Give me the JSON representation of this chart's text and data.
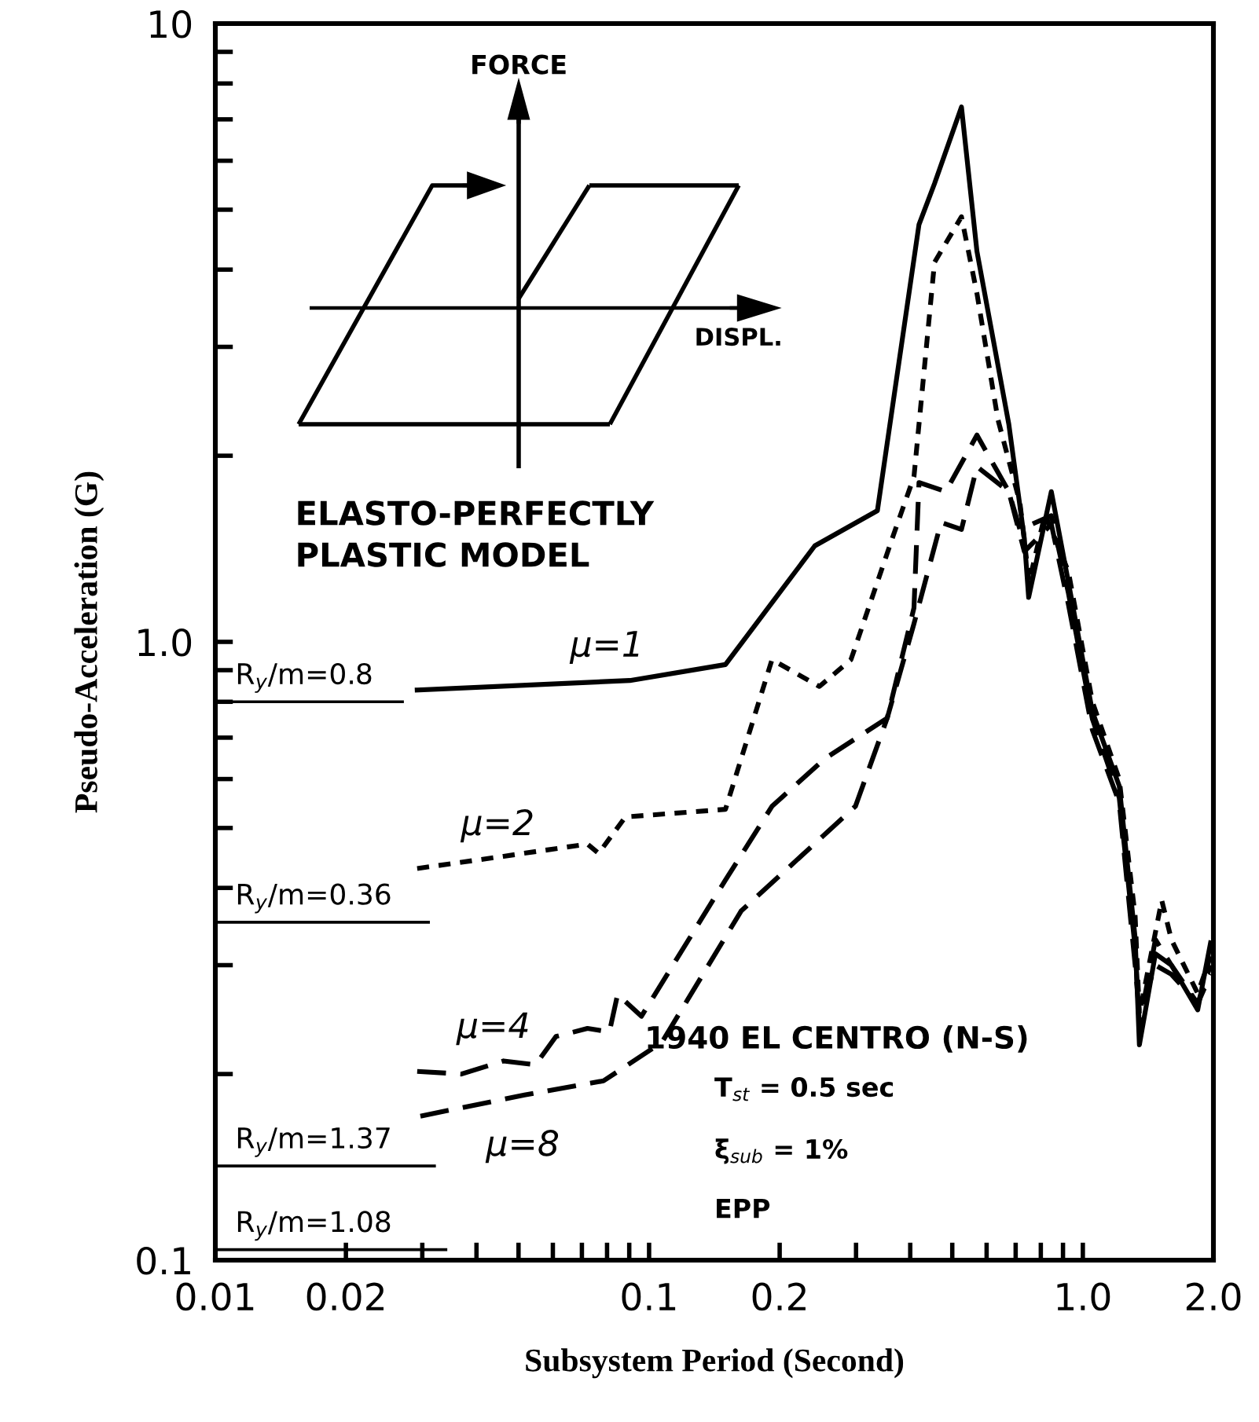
{
  "chart_data": {
    "type": "line",
    "xlabel": "Subsystem Period (Second)",
    "ylabel": "Pseudo-Acceleration (G)",
    "log": "xy",
    "xlim": [
      0.01,
      2.0
    ],
    "ylim": [
      0.1,
      10
    ],
    "xticks": [
      0.01,
      0.02,
      {
        "value": 0.03,
        "label": null
      },
      {
        "value": 0.04,
        "label": null
      },
      {
        "value": 0.05,
        "label": null
      },
      {
        "value": 0.06,
        "label": null
      },
      {
        "value": 0.07,
        "label": null
      },
      {
        "value": 0.08,
        "label": null
      },
      {
        "value": 0.09,
        "label": null
      },
      0.1,
      0.2,
      {
        "value": 0.3,
        "label": null
      },
      {
        "value": 0.4,
        "label": null
      },
      {
        "value": 0.5,
        "label": null
      },
      {
        "value": 0.6,
        "label": null
      },
      {
        "value": 0.7,
        "label": null
      },
      {
        "value": 0.8,
        "label": null
      },
      {
        "value": 0.9,
        "label": null
      },
      {
        "value": 1,
        "label": "1.0"
      },
      {
        "value": 2,
        "label": "2.0"
      }
    ],
    "yticks": [
      0.1,
      {
        "value": 0.2,
        "label": null
      },
      {
        "value": 0.3,
        "label": null
      },
      {
        "value": 0.4,
        "label": null
      },
      {
        "value": 0.5,
        "label": null
      },
      {
        "value": 0.6,
        "label": null
      },
      {
        "value": 0.7,
        "label": null
      },
      {
        "value": 0.8,
        "label": null
      },
      {
        "value": 0.9,
        "label": null
      },
      {
        "value": 1,
        "label": "1.0"
      },
      {
        "value": 2,
        "label": null
      },
      {
        "value": 3,
        "label": null
      },
      {
        "value": 4,
        "label": null
      },
      {
        "value": 5,
        "label": null
      },
      {
        "value": 6,
        "label": null
      },
      {
        "value": 7,
        "label": null
      },
      {
        "value": 8,
        "label": null
      },
      {
        "value": 9,
        "label": null
      },
      10
    ],
    "grid": false,
    "legend": false,
    "marker": "none",
    "series": [
      {
        "name": "μ=1",
        "color": "#000000",
        "line_style": "solid",
        "x": [
          0.0292,
          0.0903,
          0.15,
          0.241,
          0.336,
          0.419,
          0.455,
          0.525,
          0.57,
          0.675,
          0.733,
          0.75,
          0.846,
          0.926,
          1.052,
          1.213,
          1.32,
          1.35,
          1.47,
          1.6,
          1.84,
          1.97
        ],
        "values": [
          0.836,
          0.866,
          0.919,
          1.43,
          1.63,
          4.73,
          5.51,
          7.33,
          4.28,
          2.25,
          1.47,
          1.18,
          1.75,
          1.25,
          0.771,
          0.585,
          0.332,
          0.223,
          0.313,
          0.3,
          0.254,
          0.326
        ]
      },
      {
        "name": "μ=2",
        "color": "#000000",
        "line_style": "dotted",
        "x": [
          0.0292,
          0.0462,
          0.061,
          0.0721,
          0.0765,
          0.0882,
          0.15,
          0.192,
          0.247,
          0.292,
          0.366,
          0.408,
          0.455,
          0.525,
          0.57,
          0.637,
          0.716,
          0.752,
          0.818,
          0.926,
          1.052,
          1.213,
          1.32,
          1.35,
          1.52,
          1.6,
          1.84,
          1.97
        ],
        "values": [
          0.43,
          0.45,
          0.463,
          0.471,
          0.455,
          0.521,
          0.536,
          0.936,
          0.847,
          0.936,
          1.49,
          1.85,
          4.11,
          4.87,
          3.66,
          2.29,
          1.68,
          1.25,
          1.61,
          1.3,
          0.8,
          0.6,
          0.36,
          0.25,
          0.382,
          0.33,
          0.27,
          0.31
        ]
      },
      {
        "name": "μ=4",
        "color": "#000000",
        "line_style": "dashed",
        "x": [
          0.0292,
          0.0369,
          0.0462,
          0.0547,
          0.061,
          0.0721,
          0.081,
          0.0846,
          0.096,
          0.15,
          0.192,
          0.254,
          0.354,
          0.408,
          0.419,
          0.483,
          0.57,
          0.675,
          0.716,
          0.846,
          0.926,
          1.052,
          1.213,
          1.32,
          1.35,
          1.47,
          1.6,
          1.84,
          1.97
        ],
        "values": [
          0.202,
          0.2,
          0.21,
          0.207,
          0.23,
          0.237,
          0.234,
          0.269,
          0.248,
          0.412,
          0.542,
          0.647,
          0.753,
          1.135,
          1.81,
          1.75,
          2.16,
          1.75,
          1.52,
          1.6,
          1.2,
          0.75,
          0.56,
          0.32,
          0.24,
          0.33,
          0.3,
          0.26,
          0.3
        ]
      },
      {
        "name": "μ=8",
        "color": "#000000",
        "line_style": "dashed",
        "x": [
          0.0297,
          0.0516,
          0.0785,
          0.107,
          0.163,
          0.299,
          0.354,
          0.408,
          0.471,
          0.525,
          0.57,
          0.675,
          0.733,
          0.846,
          0.926,
          1.052,
          1.213,
          1.32,
          1.35,
          1.47,
          1.6,
          1.84,
          1.97
        ],
        "values": [
          0.171,
          0.185,
          0.195,
          0.225,
          0.367,
          0.542,
          0.753,
          1.07,
          1.56,
          1.52,
          1.92,
          1.75,
          1.4,
          1.55,
          1.15,
          0.72,
          0.55,
          0.3,
          0.25,
          0.3,
          0.29,
          0.26,
          0.29
        ]
      },
      {
        "color": "#000000",
        "line_style": "solid",
        "x": [
          0.01,
          0.027
        ],
        "values": [
          0.8,
          0.8
        ]
      },
      {
        "color": "#000000",
        "line_style": "solid",
        "x": [
          0.01,
          0.031
        ],
        "values": [
          0.352,
          0.352
        ]
      },
      {
        "color": "#000000",
        "line_style": "solid",
        "x": [
          0.01,
          0.032
        ],
        "values": [
          0.142,
          0.142
        ]
      },
      {
        "color": "#000000",
        "line_style": "solid",
        "x": [
          0.01,
          0.034
        ],
        "values": [
          0.104,
          0.104
        ]
      }
    ],
    "annotations": [
      "FORCE",
      "DISPL.",
      "ELASTO-PERFECTLY\nPLASTIC MODEL",
      "1940 EL CENTRO (N-S)",
      "T$_{st}$ = 0.5 sec",
      "ξ$_{sub}$ = 1%",
      "EPP",
      {
        "text": "R$_{y}$/m=0.8",
        "y": 0.8
      },
      {
        "text": "R$_{y}$/m=0.36",
        "y": 0.352
      },
      {
        "text": "R$_{y}$/m=1.37",
        "y": 0.142
      },
      {
        "text": "R$_{y}$/m=1.08",
        "y": 0.104
      }
    ]
  }
}
